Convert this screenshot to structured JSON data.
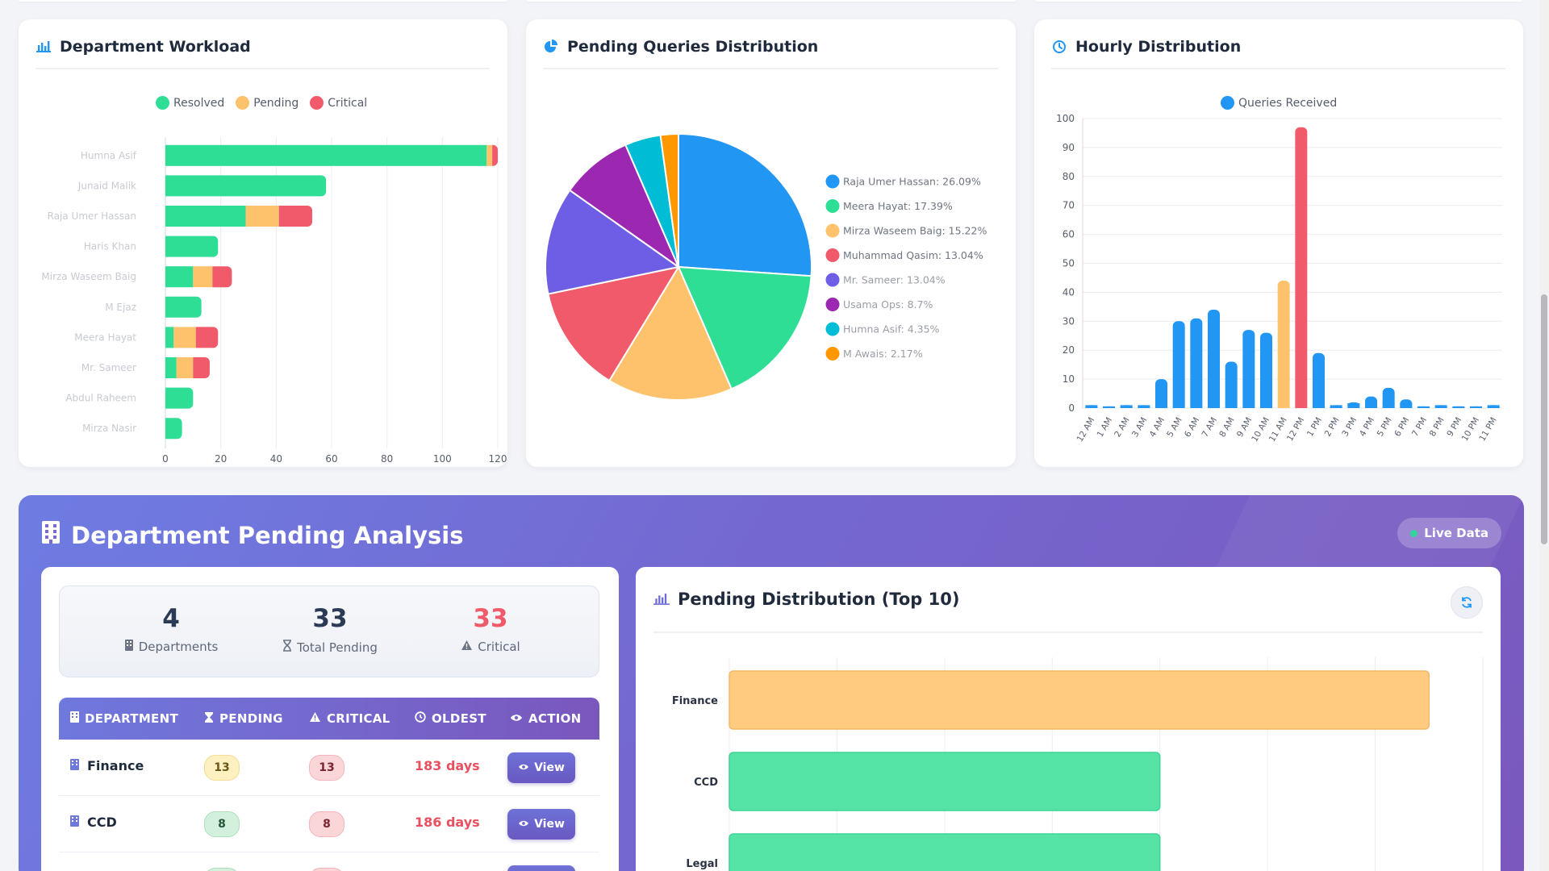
{
  "colors": {
    "resolved": "#2fde95",
    "pending": "#fdc26b",
    "critical": "#f05a6a",
    "blue": "#2196f3"
  },
  "workload": {
    "title": "Department Workload",
    "legend": [
      "Resolved",
      "Pending",
      "Critical"
    ],
    "chart_data": {
      "type": "bar",
      "orientation": "horizontal",
      "stacked": true,
      "categories": [
        "Humna Asif",
        "Junaid Malik",
        "Raja Umer Hassan",
        "Haris Khan",
        "Mirza Waseem Baig",
        "M Ejaz",
        "Meera Hayat",
        "Mr. Sameer",
        "Abdul Raheem",
        "Mirza Nasir"
      ],
      "series": [
        {
          "name": "Resolved",
          "values": [
            116,
            58,
            29,
            19,
            10,
            13,
            3,
            4,
            10,
            6
          ]
        },
        {
          "name": "Pending",
          "values": [
            2,
            0,
            12,
            0,
            7,
            0,
            8,
            6,
            0,
            0
          ]
        },
        {
          "name": "Critical",
          "values": [
            2,
            0,
            12,
            0,
            7,
            0,
            8,
            6,
            0,
            0
          ]
        }
      ],
      "xlim": [
        0,
        120
      ],
      "xticks": [
        0,
        20,
        40,
        60,
        80,
        100,
        120
      ],
      "legend_position": "top"
    }
  },
  "pending_dist": {
    "title": "Pending Queries Distribution",
    "chart_data": {
      "type": "pie",
      "labels": [
        "Raja Umer Hassan",
        "Meera Hayat",
        "Mirza Waseem Baig",
        "Muhammad Qasim",
        "Mr. Sameer",
        "Usama Ops",
        "Humna Asif",
        "M Awais"
      ],
      "values": [
        26.09,
        17.39,
        15.22,
        13.04,
        13.04,
        8.7,
        4.35,
        2.17
      ],
      "colors": [
        "#2196f3",
        "#2fde95",
        "#fdc26b",
        "#f05a6a",
        "#6e5ee6",
        "#9c27b0",
        "#00bcd4",
        "#ff9800"
      ],
      "legend_texts": [
        "Raja Umer Hassan: 26.09%",
        "Meera Hayat: 17.39%",
        "Mirza Waseem Baig: 15.22%",
        "Muhammad Qasim: 13.04%",
        "Mr. Sameer: 13.04%",
        "Usama Ops: 8.7%",
        "Humna Asif: 4.35%",
        "M Awais: 2.17%"
      ],
      "legend_position": "right"
    }
  },
  "hourly": {
    "title": "Hourly Distribution",
    "legend": [
      "Queries Received"
    ],
    "chart_data": {
      "type": "bar",
      "categories": [
        "12 AM",
        "1 AM",
        "2 AM",
        "3 AM",
        "4 AM",
        "5 AM",
        "6 AM",
        "7 AM",
        "8 AM",
        "9 AM",
        "10 AM",
        "11 AM",
        "12 PM",
        "1 PM",
        "2 PM",
        "3 PM",
        "4 PM",
        "5 PM",
        "6 PM",
        "7 PM",
        "8 PM",
        "9 PM",
        "10 PM",
        "11 PM"
      ],
      "series": [
        {
          "name": "Queries Received",
          "values": [
            1,
            0,
            1,
            1,
            10,
            30,
            31,
            34,
            16,
            27,
            26,
            44,
            97,
            19,
            1,
            2,
            4,
            7,
            3,
            0,
            1,
            0,
            0,
            1
          ]
        }
      ],
      "highlight": {
        "11 AM": "#fdc26b",
        "12 PM": "#f05a6a"
      },
      "ylim": [
        0,
        100
      ],
      "yticks": [
        0,
        10,
        20,
        30,
        40,
        50,
        60,
        70,
        80,
        90,
        100
      ],
      "legend_position": "top"
    }
  },
  "analysis": {
    "title": "Department Pending Analysis",
    "live_label": "Live Data",
    "stats": [
      {
        "value": "4",
        "label": "Departments"
      },
      {
        "value": "33",
        "label": "Total Pending"
      },
      {
        "value": "33",
        "label": "Critical"
      }
    ],
    "table": {
      "headers": [
        "DEPARTMENT",
        "PENDING",
        "CRITICAL",
        "OLDEST",
        "ACTION"
      ],
      "rows": [
        {
          "department": "Finance",
          "pending": "13",
          "critical": "13",
          "oldest": "183 days",
          "action": "View"
        },
        {
          "department": "CCD",
          "pending": "8",
          "critical": "8",
          "oldest": "186 days",
          "action": "View"
        },
        {
          "department": "",
          "pending": "",
          "critical": "",
          "oldest": "",
          "action": ""
        }
      ]
    },
    "dist": {
      "title": "Pending Distribution (Top 10)",
      "chart_data": {
        "type": "bar",
        "orientation": "horizontal",
        "categories": [
          "Finance",
          "CCD",
          "Legal"
        ],
        "values": [
          13,
          8,
          8
        ],
        "colors": [
          "#ffcb80",
          "#56e3a6",
          "#56e3a6"
        ],
        "xlim": [
          0,
          14
        ]
      }
    }
  }
}
